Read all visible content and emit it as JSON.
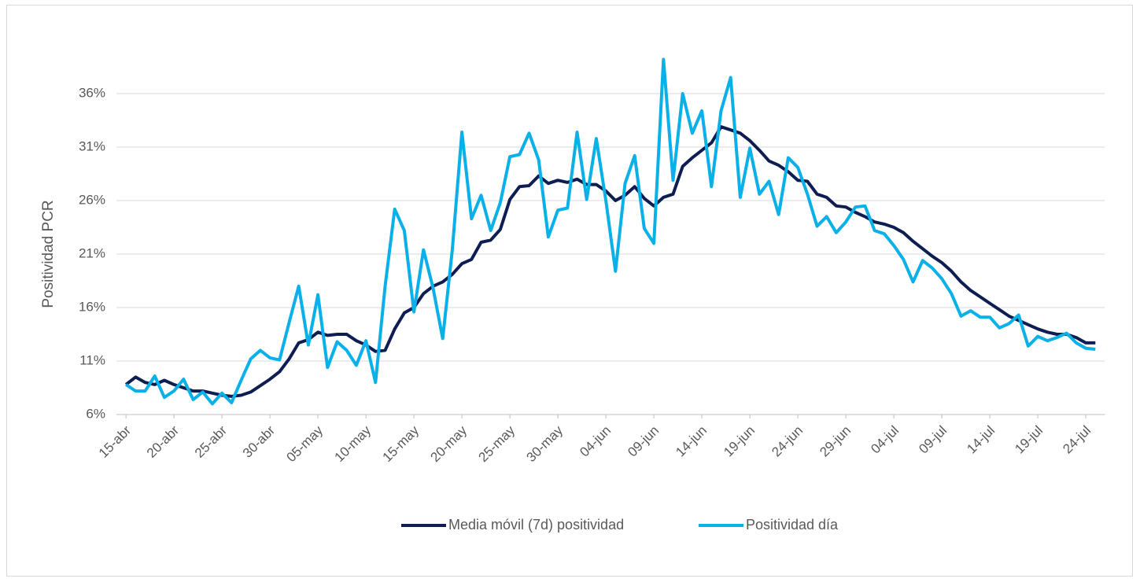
{
  "chart_data": {
    "type": "line",
    "y_label": "Positividad PCR",
    "categories": [
      "15-abr",
      null,
      null,
      null,
      null,
      "20-abr",
      null,
      null,
      null,
      null,
      "25-abr",
      null,
      null,
      null,
      null,
      "30-abr",
      null,
      null,
      null,
      null,
      "05-may",
      null,
      null,
      null,
      null,
      "10-may",
      null,
      null,
      null,
      null,
      "15-may",
      null,
      null,
      null,
      null,
      "20-may",
      null,
      null,
      null,
      null,
      "25-may",
      null,
      null,
      null,
      null,
      "30-may",
      null,
      null,
      null,
      null,
      "04-jun",
      null,
      null,
      null,
      null,
      "09-jun",
      null,
      null,
      null,
      null,
      "14-jun",
      null,
      null,
      null,
      null,
      "19-jun",
      null,
      null,
      null,
      null,
      "24-jun",
      null,
      null,
      null,
      null,
      "29-jun",
      null,
      null,
      null,
      null,
      "04-jul",
      null,
      null,
      null,
      null,
      "09-jul",
      null,
      null,
      null,
      null,
      "14-jul",
      null,
      null,
      null,
      null,
      "19-jul",
      null,
      null,
      null,
      null,
      "24-jul",
      null
    ],
    "series": [
      {
        "name": "Media móvil (7d) positividad",
        "color": "#0e1e52",
        "values": [
          8.8,
          9.5,
          9.0,
          8.8,
          9.2,
          8.8,
          8.5,
          8.2,
          8.2,
          8.0,
          7.8,
          7.7,
          7.8,
          8.1,
          8.7,
          9.3,
          10.0,
          11.2,
          12.7,
          13.0,
          13.7,
          13.4,
          13.5,
          13.5,
          12.9,
          12.5,
          11.9,
          12.0,
          14.0,
          15.5,
          16.0,
          17.3,
          18.0,
          18.4,
          19.1,
          20.1,
          20.5,
          22.1,
          22.3,
          23.3,
          26.1,
          27.3,
          27.4,
          28.3,
          27.6,
          27.9,
          27.7,
          28.0,
          27.5,
          27.5,
          26.9,
          26.0,
          26.5,
          27.3,
          26.2,
          25.5,
          26.3,
          26.6,
          29.2,
          30.0,
          30.7,
          31.4,
          32.9,
          32.6,
          32.3,
          31.6,
          30.7,
          29.7,
          29.3,
          28.7,
          27.9,
          27.8,
          26.6,
          26.3,
          25.5,
          25.4,
          24.9,
          24.5,
          24.0,
          23.8,
          23.5,
          23.0,
          22.2,
          21.5,
          20.8,
          20.2,
          19.4,
          18.4,
          17.6,
          17.0,
          16.4,
          15.8,
          15.2,
          14.8,
          14.4,
          14.0,
          13.7,
          13.5,
          13.5,
          13.2,
          12.7,
          12.7
        ]
      },
      {
        "name": "Positividad día",
        "color": "#0ab0e8",
        "values": [
          8.8,
          8.2,
          8.2,
          9.6,
          7.6,
          8.2,
          9.3,
          7.4,
          8.1,
          7.0,
          8.0,
          7.1,
          9.2,
          11.2,
          12.0,
          11.3,
          11.1,
          14.6,
          18.0,
          12.5,
          17.2,
          10.4,
          12.8,
          12.0,
          10.6,
          12.9,
          9.0,
          18.0,
          25.2,
          23.2,
          15.6,
          21.4,
          17.8,
          13.1,
          21.4,
          32.4,
          24.3,
          26.5,
          23.2,
          25.8,
          30.1,
          30.3,
          32.3,
          29.8,
          22.6,
          25.1,
          25.3,
          32.4,
          26.1,
          31.8,
          26.0,
          19.4,
          27.6,
          30.2,
          23.4,
          22.0,
          39.2,
          27.9,
          36.0,
          32.3,
          34.4,
          27.3,
          34.4,
          37.5,
          26.3,
          30.9,
          26.6,
          27.8,
          24.7,
          30.0,
          29.1,
          26.6,
          23.6,
          24.5,
          23.0,
          24.0,
          25.4,
          25.5,
          23.2,
          22.9,
          21.8,
          20.5,
          18.4,
          20.4,
          19.7,
          18.7,
          17.3,
          15.2,
          15.7,
          15.1,
          15.1,
          14.1,
          14.5,
          15.3,
          12.4,
          13.3,
          12.9,
          13.2,
          13.6,
          12.7,
          12.2,
          12.1
        ]
      }
    ],
    "ylim": [
      6,
      40
    ],
    "yticks": [
      {
        "value": 6,
        "label": "6%"
      },
      {
        "value": 11,
        "label": "11%"
      },
      {
        "value": 16,
        "label": "16%"
      },
      {
        "value": 21,
        "label": "21%"
      },
      {
        "value": 26,
        "label": "26%"
      },
      {
        "value": 31,
        "label": "31%"
      },
      {
        "value": 36,
        "label": "36%"
      }
    ],
    "grid": true,
    "legend": "bottom"
  }
}
